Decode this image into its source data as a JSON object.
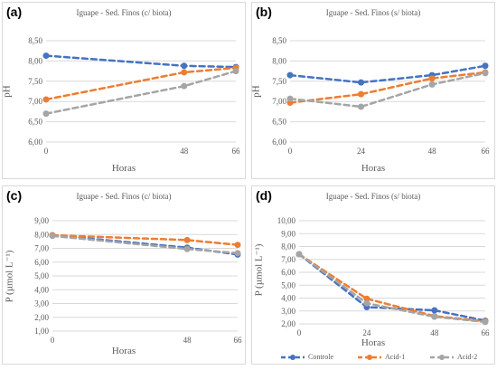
{
  "colors": {
    "controle": "#4472c4",
    "acid1": "#ed7d31",
    "acid2": "#a5a5a5"
  },
  "legend": {
    "controle": "Controle",
    "acid1": "Acid-1",
    "acid2": "Acid-2"
  },
  "panels": [
    {
      "label": "(a)",
      "title": "Iguape - Sed. Finos (c/ biota)",
      "xlabel": "Horas",
      "ylabel": "pH"
    },
    {
      "label": "(b)",
      "title": "Iguape - Sed. Finos (s/ biota)",
      "xlabel": "Horas",
      "ylabel": "pH"
    },
    {
      "label": "(c)",
      "title": "Iguape - Sed. Finos (c/ biota)",
      "xlabel": "Horas",
      "ylabel": "P (µmol L⁻¹)"
    },
    {
      "label": "(d)",
      "title": "Iguape - Sed. Finos (s/ biota)",
      "xlabel": "Horas",
      "ylabel": "P (µmol L⁻¹)"
    }
  ],
  "chart_data": [
    {
      "type": "line",
      "title": "Iguape - Sed. Finos (c/ biota)",
      "xlabel": "Horas",
      "ylabel": "pH",
      "categories": [
        "0",
        "48",
        "66"
      ],
      "yticks": [
        "6,00",
        "6,50",
        "7,00",
        "7,50",
        "8,00",
        "8,50"
      ],
      "ylim": [
        6.0,
        8.5
      ],
      "grid": true,
      "series": [
        {
          "name": "Controle",
          "values": [
            8.13,
            7.88,
            7.85
          ]
        },
        {
          "name": "Acid-1",
          "values": [
            7.05,
            7.72,
            7.83
          ]
        },
        {
          "name": "Acid-2",
          "values": [
            6.7,
            7.38,
            7.75
          ]
        }
      ]
    },
    {
      "type": "line",
      "title": "Iguape - Sed. Finos (s/ biota)",
      "xlabel": "Horas",
      "ylabel": "pH",
      "categories": [
        "0",
        "24",
        "48",
        "66"
      ],
      "yticks": [
        "6,00",
        "6,50",
        "7,00",
        "7,50",
        "8,00",
        "8,50"
      ],
      "ylim": [
        6.0,
        8.5
      ],
      "grid": true,
      "series": [
        {
          "name": "Controle",
          "values": [
            7.65,
            7.47,
            7.65,
            7.88
          ]
        },
        {
          "name": "Acid-1",
          "values": [
            6.97,
            7.18,
            7.57,
            7.72
          ]
        },
        {
          "name": "Acid-2",
          "values": [
            7.07,
            6.87,
            7.42,
            7.7
          ]
        }
      ]
    },
    {
      "type": "line",
      "title": "Iguape - Sed. Finos (c/ biota)",
      "xlabel": "Horas",
      "ylabel": "P (µmol L⁻¹)",
      "categories": [
        "0",
        "48",
        "66"
      ],
      "yticks": [
        "1,00",
        "2,00",
        "3,00",
        "4,00",
        "5,00",
        "6,00",
        "7,00",
        "8,00",
        "9,00"
      ],
      "ylim": [
        1.0,
        9.0
      ],
      "grid": true,
      "series": [
        {
          "name": "Controle",
          "values": [
            7.95,
            7.05,
            6.55
          ]
        },
        {
          "name": "Acid-1",
          "values": [
            7.95,
            7.6,
            7.25
          ]
        },
        {
          "name": "Acid-2",
          "values": [
            7.9,
            6.95,
            6.65
          ]
        }
      ]
    },
    {
      "type": "line",
      "title": "Iguape - Sed. Finos (s/ biota)",
      "xlabel": "Horas",
      "ylabel": "P (µmol L⁻¹)",
      "categories": [
        "0",
        "24",
        "48",
        "66"
      ],
      "yticks": [
        "2,00",
        "3,00",
        "4,00",
        "5,00",
        "6,00",
        "7,00",
        "8,00",
        "9,00",
        "10,00"
      ],
      "ylim": [
        2.0,
        10.0
      ],
      "grid": true,
      "legend_position": "bottom",
      "series": [
        {
          "name": "Controle",
          "values": [
            7.4,
            3.3,
            3.05,
            2.25
          ]
        },
        {
          "name": "Acid-1",
          "values": [
            7.4,
            3.95,
            2.6,
            2.2
          ]
        },
        {
          "name": "Acid-2",
          "values": [
            7.4,
            3.6,
            2.55,
            2.15
          ]
        }
      ]
    }
  ]
}
